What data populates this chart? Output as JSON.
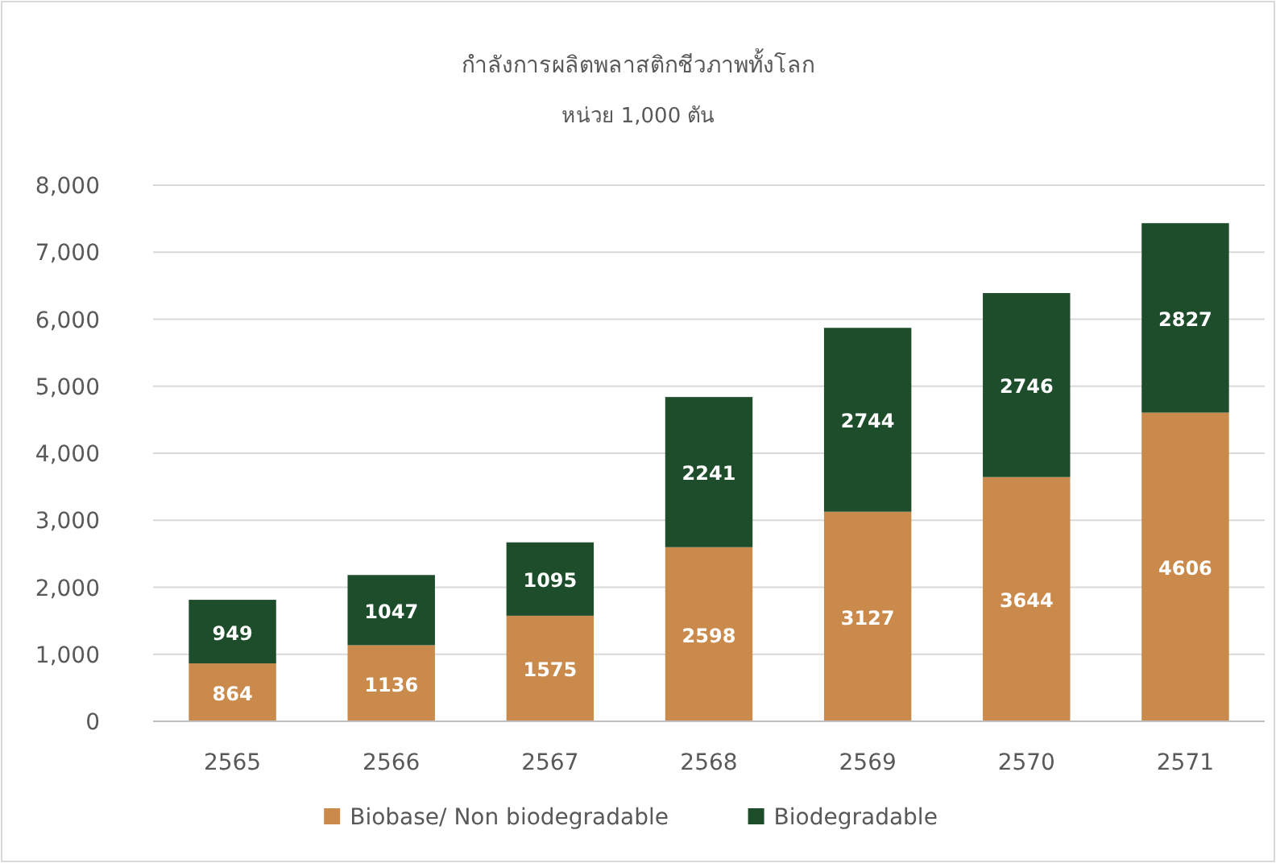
{
  "chart_data": {
    "type": "bar",
    "title": "กำลังการผลิตพลาสติกชีวภาพทั้งโลก",
    "subtitle": "หน่วย 1,000 ตัน",
    "categories": [
      "2565",
      "2566",
      "2567",
      "2568",
      "2569",
      "2570",
      "2571"
    ],
    "stacked": true,
    "series": [
      {
        "name": "Biobase/ Non biodegradable",
        "color": "#c98a4b",
        "values": [
          864,
          1136,
          1575,
          2598,
          3127,
          3644,
          4606
        ]
      },
      {
        "name": "Biodegradable",
        "color": "#1e4d2b",
        "values": [
          949,
          1047,
          1095,
          2241,
          2744,
          2746,
          2827
        ]
      }
    ],
    "ylim": [
      0,
      8000
    ],
    "yticks": [
      {
        "value": 0,
        "label": "0"
      },
      {
        "value": 1000,
        "label": "1,000"
      },
      {
        "value": 2000,
        "label": "2,000"
      },
      {
        "value": 3000,
        "label": "3,000"
      },
      {
        "value": 4000,
        "label": "4,000"
      },
      {
        "value": 5000,
        "label": "5,000"
      },
      {
        "value": 6000,
        "label": "6,000"
      },
      {
        "value": 7000,
        "label": "7,000"
      },
      {
        "value": 8000,
        "label": "8,000"
      }
    ],
    "grid": "y",
    "legend": "bottom",
    "data_labels": true
  }
}
